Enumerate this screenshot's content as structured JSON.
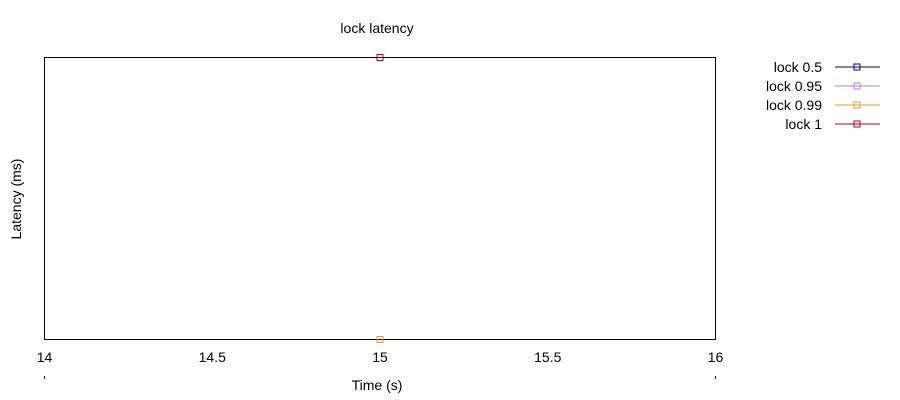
{
  "chart_data": {
    "type": "scatter",
    "title": "lock latency",
    "xlabel": "Time (s)",
    "ylabel": "Latency (ms)",
    "xlim": [
      14,
      16
    ],
    "ylim": [
      0,
      1
    ],
    "x_ticks": [
      "14",
      "14.5",
      "15",
      "15.5",
      "16"
    ],
    "x_tick_values": [
      14,
      14.5,
      15,
      15.5,
      16
    ],
    "y_ticks": [],
    "grid": false,
    "legend_position": "top-right, outside plot",
    "series": [
      {
        "name": "lock 0.5",
        "color": "#00008b",
        "points": [
          [
            15,
            0
          ]
        ]
      },
      {
        "name": "lock 0.95",
        "color": "#b57edc",
        "points": [
          [
            15,
            0
          ]
        ]
      },
      {
        "name": "lock 0.99",
        "color": "#daa520",
        "points": [
          [
            15,
            0
          ]
        ]
      },
      {
        "name": "lock 1",
        "color": "#c00000",
        "points": [
          [
            15,
            1
          ]
        ]
      }
    ]
  }
}
